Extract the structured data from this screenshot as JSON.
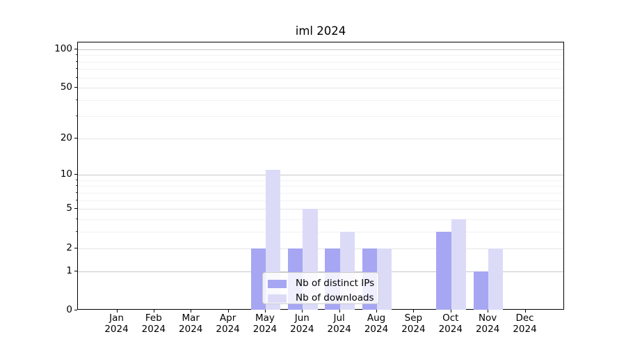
{
  "chart_data": {
    "type": "bar",
    "title": "iml 2024",
    "categories": [
      {
        "m": "Jan",
        "y": "2024"
      },
      {
        "m": "Feb",
        "y": "2024"
      },
      {
        "m": "Mar",
        "y": "2024"
      },
      {
        "m": "Apr",
        "y": "2024"
      },
      {
        "m": "May",
        "y": "2024"
      },
      {
        "m": "Jun",
        "y": "2024"
      },
      {
        "m": "Jul",
        "y": "2024"
      },
      {
        "m": "Aug",
        "y": "2024"
      },
      {
        "m": "Sep",
        "y": "2024"
      },
      {
        "m": "Oct",
        "y": "2024"
      },
      {
        "m": "Nov",
        "y": "2024"
      },
      {
        "m": "Dec",
        "y": "2024"
      }
    ],
    "series": [
      {
        "name": "Nb of distinct IPs",
        "color": "#a6a6f3",
        "values": [
          0,
          0,
          0,
          0,
          2,
          2,
          2,
          2,
          0,
          3,
          1,
          0
        ]
      },
      {
        "name": "Nb of downloads",
        "color": "#dbdbf8",
        "values": [
          0,
          0,
          0,
          0,
          11,
          5,
          3,
          2,
          0,
          4,
          2,
          0
        ]
      }
    ],
    "xlabel": "",
    "ylabel": "",
    "y_scale": "log1p",
    "y_ticks": [
      0,
      1,
      2,
      5,
      10,
      20,
      50,
      100
    ],
    "y_minor_ticks": [
      3,
      4,
      6,
      7,
      8,
      9,
      30,
      40,
      60,
      70,
      80,
      90
    ],
    "ylim": [
      0,
      113
    ],
    "grid": true,
    "legend_position": "lower center",
    "colors": {
      "spine": "#000000",
      "grid_decade": "#c7c7c7",
      "grid_major": "#e4e4e4",
      "grid_minor": "#f2f2f2",
      "legend_border": "#cccccc"
    }
  }
}
